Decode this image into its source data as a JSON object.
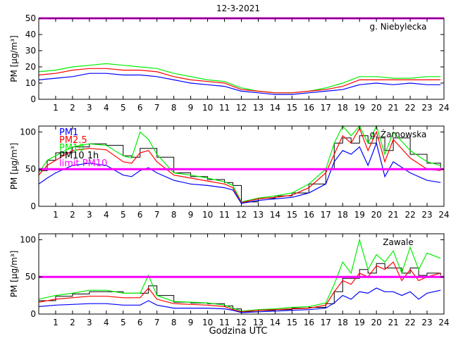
{
  "figure": {
    "title": "12-3-2021",
    "xlabel": "Godzina UTC"
  },
  "colors": {
    "PM1": "#0000ff",
    "PM2.5": "#ff0000",
    "PM10": "#00ee00",
    "PM10 1h": "#000000",
    "limit": "#ff00ff"
  },
  "chart_data": [
    {
      "type": "line",
      "panel_label": "g. Niebylecka",
      "ylabel": "PM [µg/m³]",
      "xlim": [
        0,
        24
      ],
      "ylim": [
        0,
        50
      ],
      "xticks": [
        1,
        2,
        3,
        4,
        5,
        6,
        7,
        8,
        9,
        10,
        11,
        12,
        13,
        14,
        15,
        16,
        17,
        18,
        19,
        20,
        21,
        22,
        23,
        24
      ],
      "yticks": [
        0,
        10,
        20,
        30,
        40,
        50
      ],
      "limit_line": 50,
      "legend": [],
      "x": [
        0,
        1,
        2,
        3,
        4,
        5,
        6,
        7,
        8,
        9,
        10,
        11,
        12,
        13,
        14,
        15,
        16,
        17,
        18,
        19,
        20,
        21,
        22,
        23,
        23.8
      ],
      "series": [
        {
          "name": "PM1",
          "values": [
            12,
            13,
            14,
            16,
            16,
            15,
            15,
            14,
            12,
            10,
            9,
            8,
            5,
            4,
            3,
            3,
            4,
            5,
            6,
            9,
            10,
            9,
            10,
            9,
            9
          ]
        },
        {
          "name": "PM2.5",
          "values": [
            15,
            16,
            18,
            19,
            19,
            18,
            18,
            17,
            14,
            12,
            11,
            10,
            6,
            5,
            4,
            4,
            5,
            6,
            8,
            12,
            12,
            12,
            12,
            12,
            12
          ]
        },
        {
          "name": "PM10",
          "values": [
            17,
            18,
            20,
            21,
            22,
            21,
            20,
            19,
            16,
            14,
            12,
            11,
            7,
            5,
            4,
            4,
            5,
            7,
            10,
            14,
            14,
            13,
            13,
            14,
            14
          ]
        }
      ]
    },
    {
      "type": "line",
      "panel_label": "g. Żarnowska",
      "ylabel": "PM [µg/m³]",
      "xlim": [
        0,
        24
      ],
      "ylim": [
        0,
        108
      ],
      "xticks": [
        1,
        2,
        3,
        4,
        5,
        6,
        7,
        8,
        9,
        10,
        11,
        12,
        13,
        14,
        15,
        16,
        17,
        18,
        19,
        20,
        21,
        22,
        23,
        24
      ],
      "yticks": [
        0,
        50,
        100
      ],
      "limit_line": 50,
      "legend": [
        "PM1",
        "PM2.5",
        "PM10",
        "PM10 1h",
        "limit PM10"
      ],
      "x": [
        0,
        0.5,
        1,
        2,
        3,
        4,
        5,
        5.5,
        6,
        6.5,
        7,
        8,
        9,
        10,
        11,
        11.5,
        12,
        13,
        14,
        15,
        16,
        17,
        17.5,
        18,
        18.5,
        19,
        19.5,
        20,
        20.5,
        21,
        22,
        23,
        23.8
      ],
      "series": [
        {
          "name": "PM1",
          "values": [
            30,
            38,
            45,
            55,
            58,
            55,
            42,
            40,
            48,
            52,
            45,
            35,
            30,
            28,
            25,
            22,
            4,
            8,
            10,
            12,
            18,
            30,
            60,
            75,
            70,
            80,
            55,
            85,
            40,
            60,
            45,
            35,
            32
          ]
        },
        {
          "name": "PM2.5",
          "values": [
            42,
            55,
            62,
            75,
            78,
            76,
            60,
            58,
            72,
            75,
            60,
            42,
            38,
            34,
            30,
            25,
            5,
            10,
            12,
            15,
            25,
            45,
            70,
            95,
            85,
            105,
            75,
            100,
            60,
            90,
            65,
            50,
            48
          ]
        },
        {
          "name": "PM10",
          "values": [
            45,
            62,
            68,
            80,
            84,
            82,
            68,
            65,
            100,
            90,
            70,
            45,
            42,
            38,
            33,
            28,
            6,
            11,
            14,
            18,
            30,
            50,
            85,
            108,
            95,
            108,
            85,
            108,
            70,
            100,
            75,
            60,
            55
          ]
        },
        {
          "name": "PM10 1h",
          "values": [
            48,
            62,
            72,
            80,
            84,
            82,
            68,
            66,
            78,
            78,
            66,
            45,
            40,
            36,
            32,
            28,
            6,
            11,
            14,
            18,
            30,
            50,
            85,
            92,
            85,
            95,
            85,
            92,
            75,
            92,
            70,
            58,
            52
          ]
        }
      ]
    },
    {
      "type": "line",
      "panel_label": "Zawale",
      "ylabel": "PM [µg/m³]",
      "xlim": [
        0,
        24
      ],
      "ylim": [
        0,
        108
      ],
      "xticks": [
        1,
        2,
        3,
        4,
        5,
        6,
        7,
        8,
        9,
        10,
        11,
        12,
        13,
        14,
        15,
        16,
        17,
        18,
        19,
        20,
        21,
        22,
        23,
        24
      ],
      "yticks": [
        0,
        50,
        100
      ],
      "limit_line": 50,
      "legend": [],
      "x": [
        0,
        1,
        2,
        3,
        4,
        5,
        6,
        6.5,
        7,
        8,
        9,
        10,
        11,
        11.5,
        12,
        13,
        14,
        15,
        16,
        17,
        17.5,
        18,
        18.5,
        19,
        19.5,
        20,
        20.5,
        21,
        21.5,
        22,
        22.5,
        23,
        23.8
      ],
      "series": [
        {
          "name": "PM1",
          "values": [
            10,
            12,
            13,
            14,
            14,
            12,
            12,
            18,
            12,
            8,
            8,
            8,
            7,
            5,
            2,
            3,
            4,
            5,
            6,
            8,
            15,
            25,
            20,
            30,
            28,
            35,
            30,
            30,
            25,
            30,
            20,
            28,
            32
          ]
        },
        {
          "name": "PM2.5",
          "values": [
            16,
            20,
            22,
            24,
            24,
            22,
            22,
            35,
            20,
            14,
            13,
            12,
            10,
            6,
            3,
            5,
            6,
            7,
            8,
            12,
            30,
            45,
            40,
            55,
            50,
            65,
            60,
            70,
            45,
            60,
            45,
            50,
            55
          ]
        },
        {
          "name": "PM10",
          "values": [
            20,
            25,
            28,
            32,
            32,
            28,
            28,
            52,
            25,
            17,
            16,
            15,
            12,
            8,
            4,
            6,
            7,
            9,
            10,
            15,
            40,
            70,
            55,
            100,
            60,
            80,
            70,
            85,
            55,
            90,
            60,
            82,
            75
          ]
        },
        {
          "name": "PM10 1h",
          "values": [
            18,
            24,
            27,
            30,
            30,
            28,
            28,
            38,
            25,
            16,
            15,
            14,
            11,
            7,
            3,
            5,
            6,
            8,
            9,
            14,
            30,
            48,
            48,
            60,
            55,
            68,
            62,
            62,
            55,
            62,
            52,
            55,
            52
          ]
        }
      ]
    }
  ]
}
